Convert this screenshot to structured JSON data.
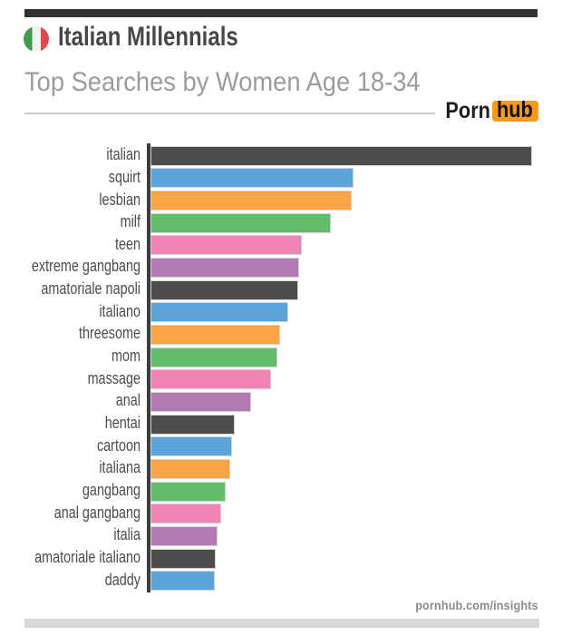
{
  "header": {
    "flag_icon": "italian-flag",
    "title": "Italian Millennials",
    "subtitle": "Top Searches by Women Age 18-34",
    "brand": {
      "porn": "Porn",
      "hub": "hub",
      "accent_color": "#f8981e"
    }
  },
  "footer": {
    "site": "pornhub.com/insights"
  },
  "chart_data": {
    "type": "bar",
    "orientation": "horizontal",
    "title": "Top Searches by Women Age 18-34",
    "group": "Italian Millennials",
    "categories": [
      "italian",
      "squirt",
      "lesbian",
      "milf",
      "teen",
      "extreme gangbang",
      "amatoriale napoli",
      "italiano",
      "threesome",
      "mom",
      "massage",
      "anal",
      "hentai",
      "cartoon",
      "italiana",
      "gangbang",
      "anal gangbang",
      "italia",
      "amatoriale italiano",
      "daddy"
    ],
    "values": [
      100,
      53.2,
      52.7,
      47.3,
      39.6,
      39.1,
      38.8,
      36.2,
      34.1,
      33.4,
      31.6,
      26.3,
      22.2,
      21.4,
      21.0,
      19.7,
      18.6,
      17.5,
      17.1,
      16.8
    ],
    "value_note": "relative bar lengths, longest bar = 100 (no numeric axis shown)",
    "palette": [
      "#4d4d4d",
      "#5ba4d9",
      "#f9a447",
      "#61bb6b",
      "#f082b5",
      "#b279b4"
    ],
    "axis_color": "#3d3d3d",
    "legend": "none",
    "grid": false
  }
}
